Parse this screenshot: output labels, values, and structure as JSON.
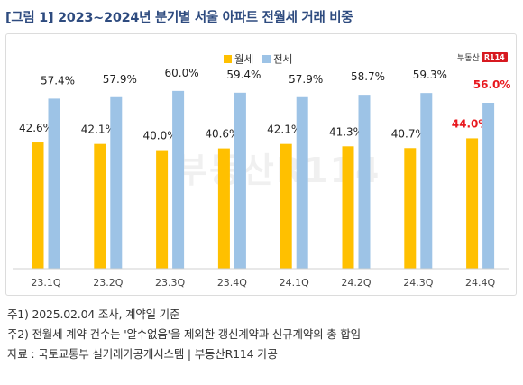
{
  "title": "[그림 1] 2023~2024년 분기별 서울 아파트 전월세 거래 비중",
  "brand": {
    "text": "부동산",
    "mark": "R114"
  },
  "notes": [
    "주1) 2025.02.04 조사, 계약일 기준",
    "주2) 전월세 계약 건수는 '알수없음'을 제외한 갱신계약과 신규계약의 총 합임",
    "자료 : 국토교통부 실거래가공개시스템 | 부동산R114 가공"
  ],
  "colors": {
    "monthly": "#ffc000",
    "jeonse": "#9dc3e6",
    "highlight_label": "#e8181e",
    "label": "#222222",
    "axis_label": "#444444"
  },
  "chart_data": {
    "type": "bar",
    "categories": [
      "23.1Q",
      "23.2Q",
      "23.3Q",
      "23.4Q",
      "24.1Q",
      "24.2Q",
      "24.3Q",
      "24.4Q"
    ],
    "series": [
      {
        "name": "월세",
        "values": [
          42.6,
          42.1,
          40.0,
          40.6,
          42.1,
          41.3,
          40.7,
          44.0
        ],
        "labels": [
          "42.6%",
          "42.1%",
          "40.0%",
          "40.6%",
          "42.1%",
          "41.3%",
          "40.7%",
          "44.0%"
        ]
      },
      {
        "name": "전세",
        "values": [
          57.4,
          57.9,
          60.0,
          59.4,
          57.9,
          58.7,
          59.3,
          56.0
        ],
        "labels": [
          "57.4%",
          "57.9%",
          "60.0%",
          "59.4%",
          "57.9%",
          "58.7%",
          "59.3%",
          "56.0%"
        ]
      }
    ],
    "ylim": [
      0,
      70
    ],
    "highlight_category": "24.4Q",
    "legend_position": "top-right",
    "grid": false
  }
}
